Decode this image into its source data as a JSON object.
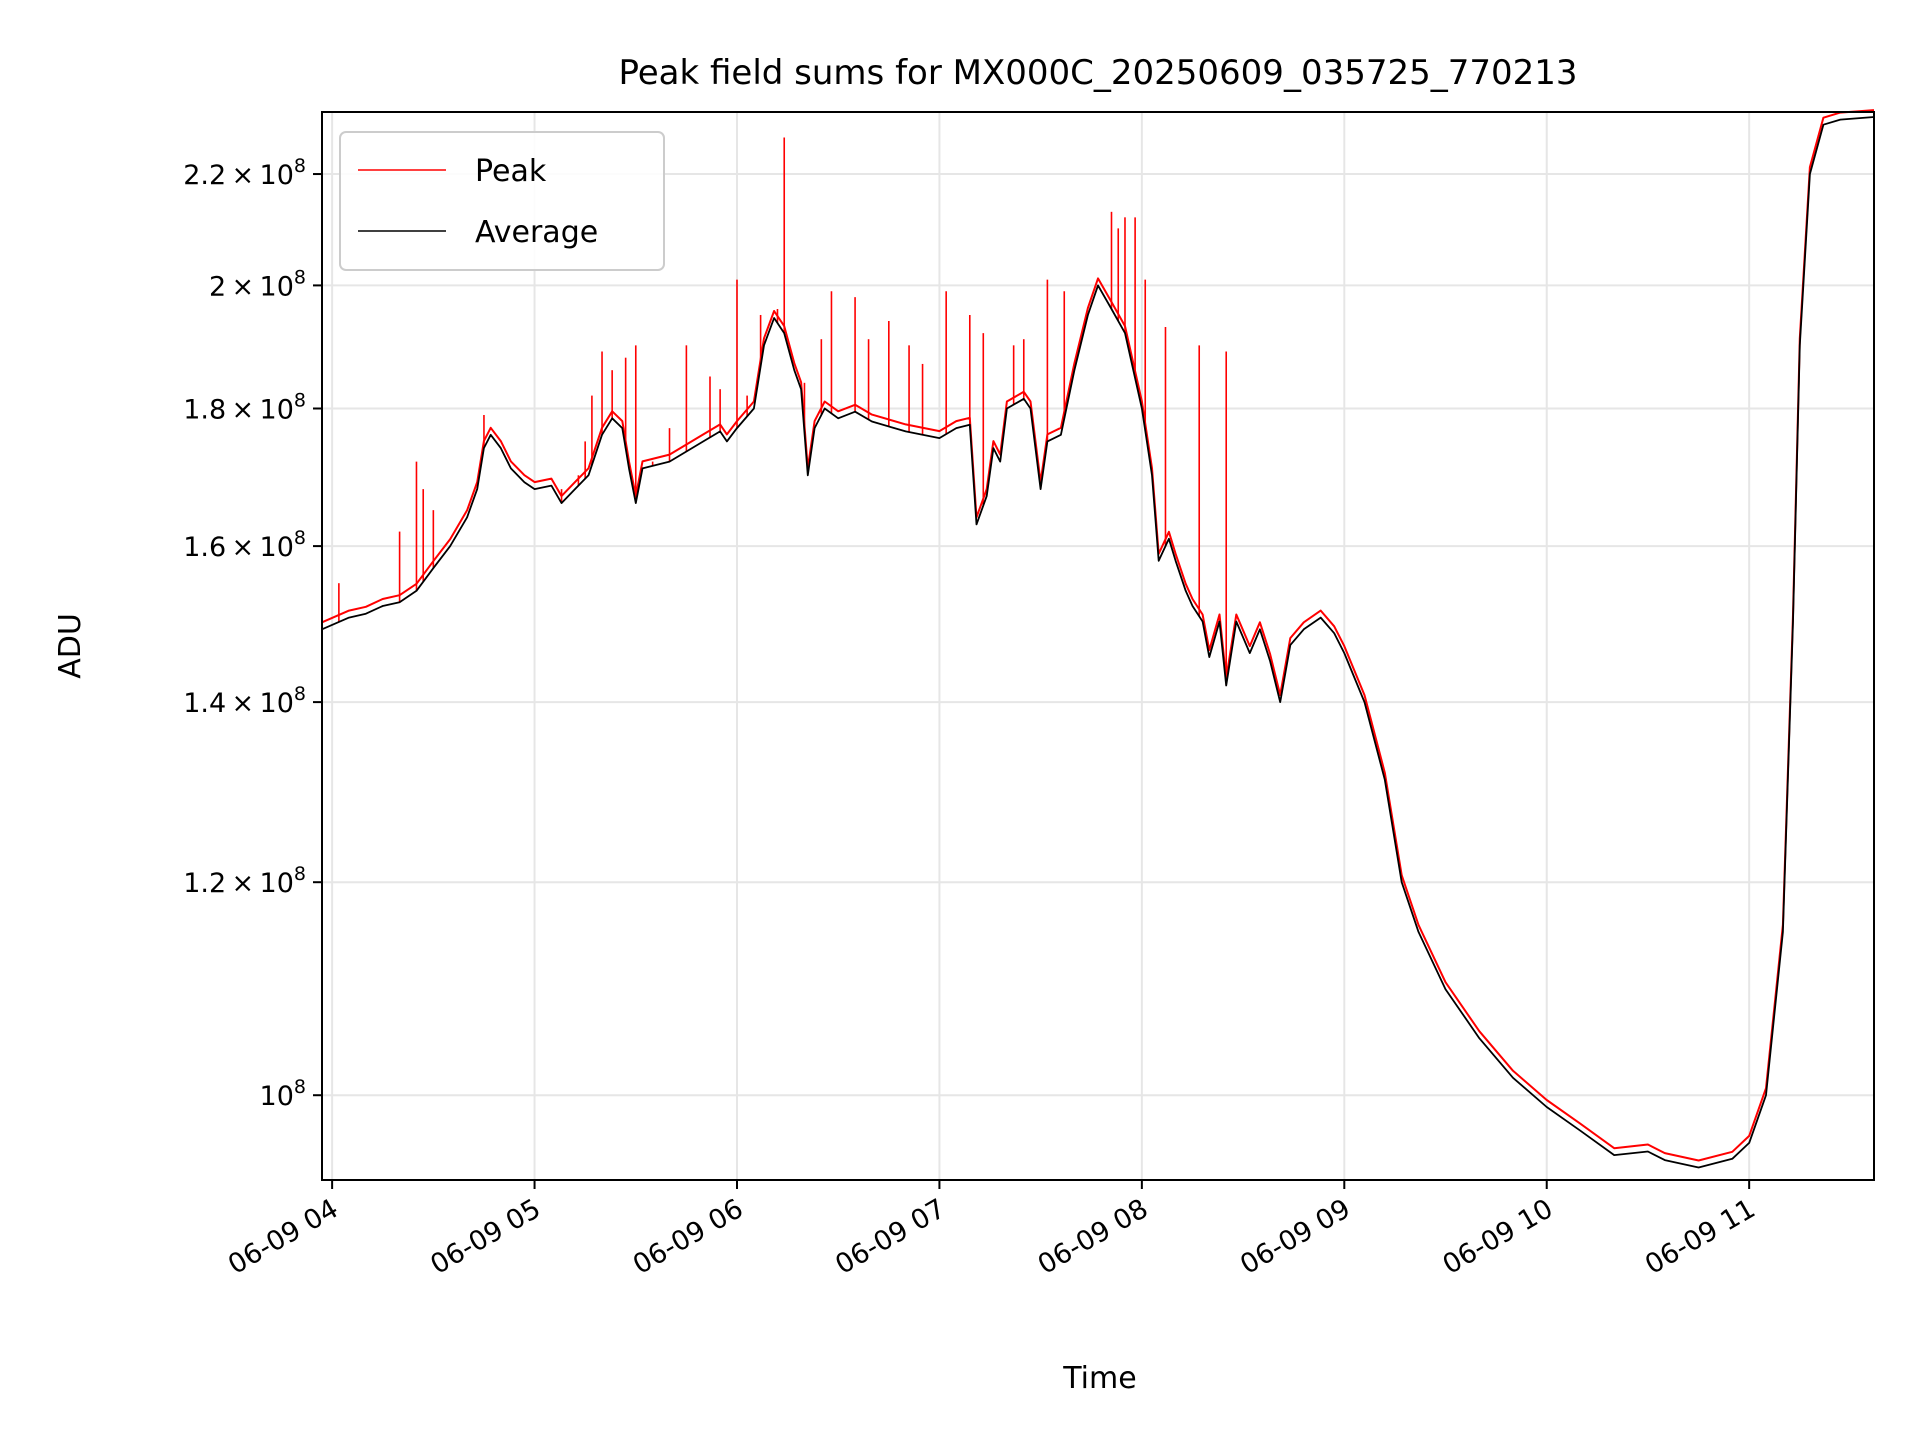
{
  "chart_data": {
    "type": "line",
    "title": "Peak field sums for MX000C_20250609_035725_770213",
    "xlabel": "Time",
    "ylabel": "ADU",
    "x_scale": "time",
    "y_scale": "log",
    "xlim": [
      "2025-06-09 03:57",
      "2025-06-09 11:37"
    ],
    "ylim": [
      93000000,
      232000000
    ],
    "grid": true,
    "legend_position": "upper-left",
    "x_ticks": [
      {
        "value": "2025-06-09 04:00",
        "label": "06-09 04"
      },
      {
        "value": "2025-06-09 05:00",
        "label": "06-09 05"
      },
      {
        "value": "2025-06-09 06:00",
        "label": "06-09 06"
      },
      {
        "value": "2025-06-09 07:00",
        "label": "06-09 07"
      },
      {
        "value": "2025-06-09 08:00",
        "label": "06-09 08"
      },
      {
        "value": "2025-06-09 09:00",
        "label": "06-09 09"
      },
      {
        "value": "2025-06-09 10:00",
        "label": "06-09 10"
      },
      {
        "value": "2025-06-09 11:00",
        "label": "06-09 11"
      }
    ],
    "y_ticks": [
      {
        "value": 100000000,
        "mantissa": "",
        "exponent": "8"
      },
      {
        "value": 120000000,
        "mantissa": "1.2",
        "exponent": "8"
      },
      {
        "value": 140000000,
        "mantissa": "1.4",
        "exponent": "8"
      },
      {
        "value": 160000000,
        "mantissa": "1.6",
        "exponent": "8"
      },
      {
        "value": 180000000,
        "mantissa": "1.8",
        "exponent": "8"
      },
      {
        "value": 200000000,
        "mantissa": "2",
        "exponent": "8"
      },
      {
        "value": 220000000,
        "mantissa": "2.2",
        "exponent": "8"
      }
    ],
    "series": [
      {
        "name": "Peak",
        "color": "#ff0000",
        "spikes": [
          [
            "2025-06-09 04:02",
            155000000
          ],
          [
            "2025-06-09 04:20",
            162000000
          ],
          [
            "2025-06-09 04:25",
            172000000
          ],
          [
            "2025-06-09 04:27",
            168000000
          ],
          [
            "2025-06-09 04:30",
            165000000
          ],
          [
            "2025-06-09 04:45",
            179000000
          ],
          [
            "2025-06-09 05:08",
            168000000
          ],
          [
            "2025-06-09 05:13",
            170000000
          ],
          [
            "2025-06-09 05:15",
            175000000
          ],
          [
            "2025-06-09 05:17",
            182000000
          ],
          [
            "2025-06-09 05:20",
            189000000
          ],
          [
            "2025-06-09 05:23",
            186000000
          ],
          [
            "2025-06-09 05:27",
            188000000
          ],
          [
            "2025-06-09 05:30",
            190000000
          ],
          [
            "2025-06-09 05:35",
            172000000
          ],
          [
            "2025-06-09 05:40",
            177000000
          ],
          [
            "2025-06-09 05:45",
            190000000
          ],
          [
            "2025-06-09 05:52",
            185000000
          ],
          [
            "2025-06-09 05:55",
            183000000
          ],
          [
            "2025-06-09 06:00",
            201000000
          ],
          [
            "2025-06-09 06:03",
            182000000
          ],
          [
            "2025-06-09 06:07",
            195000000
          ],
          [
            "2025-06-09 06:12",
            196000000
          ],
          [
            "2025-06-09 06:14",
            227000000
          ],
          [
            "2025-06-09 06:20",
            184000000
          ],
          [
            "2025-06-09 06:25",
            191000000
          ],
          [
            "2025-06-09 06:28",
            199000000
          ],
          [
            "2025-06-09 06:35",
            198000000
          ],
          [
            "2025-06-09 06:39",
            191000000
          ],
          [
            "2025-06-09 06:45",
            194000000
          ],
          [
            "2025-06-09 06:51",
            190000000
          ],
          [
            "2025-06-09 06:55",
            187000000
          ],
          [
            "2025-06-09 07:02",
            199000000
          ],
          [
            "2025-06-09 07:09",
            195000000
          ],
          [
            "2025-06-09 07:13",
            192000000
          ],
          [
            "2025-06-09 07:22",
            190000000
          ],
          [
            "2025-06-09 07:25",
            191000000
          ],
          [
            "2025-06-09 07:32",
            201000000
          ],
          [
            "2025-06-09 07:37",
            199000000
          ],
          [
            "2025-06-09 07:43",
            193000000
          ],
          [
            "2025-06-09 07:48",
            199000000
          ],
          [
            "2025-06-09 07:51",
            213000000
          ],
          [
            "2025-06-09 07:53",
            210000000
          ],
          [
            "2025-06-09 07:55",
            212000000
          ],
          [
            "2025-06-09 07:58",
            212000000
          ],
          [
            "2025-06-09 08:01",
            201000000
          ],
          [
            "2025-06-09 08:07",
            193000000
          ],
          [
            "2025-06-09 08:17",
            190000000
          ],
          [
            "2025-06-09 08:25",
            189000000
          ]
        ]
      },
      {
        "name": "Average",
        "color": "#000000",
        "points": [
          [
            "2025-06-09 03:57",
            149000000
          ],
          [
            "2025-06-09 04:05",
            150500000
          ],
          [
            "2025-06-09 04:10",
            151000000
          ],
          [
            "2025-06-09 04:15",
            152000000
          ],
          [
            "2025-06-09 04:20",
            152500000
          ],
          [
            "2025-06-09 04:25",
            154000000
          ],
          [
            "2025-06-09 04:30",
            157000000
          ],
          [
            "2025-06-09 04:35",
            160000000
          ],
          [
            "2025-06-09 04:40",
            164000000
          ],
          [
            "2025-06-09 04:43",
            168000000
          ],
          [
            "2025-06-09 04:45",
            174000000
          ],
          [
            "2025-06-09 04:47",
            176000000
          ],
          [
            "2025-06-09 04:50",
            174000000
          ],
          [
            "2025-06-09 04:53",
            171000000
          ],
          [
            "2025-06-09 04:57",
            169000000
          ],
          [
            "2025-06-09 05:00",
            168000000
          ],
          [
            "2025-06-09 05:05",
            168500000
          ],
          [
            "2025-06-09 05:08",
            166000000
          ],
          [
            "2025-06-09 05:12",
            168000000
          ],
          [
            "2025-06-09 05:16",
            170000000
          ],
          [
            "2025-06-09 05:20",
            176000000
          ],
          [
            "2025-06-09 05:23",
            178500000
          ],
          [
            "2025-06-09 05:26",
            177000000
          ],
          [
            "2025-06-09 05:28",
            171000000
          ],
          [
            "2025-06-09 05:30",
            166000000
          ],
          [
            "2025-06-09 05:32",
            171000000
          ],
          [
            "2025-06-09 05:40",
            172000000
          ],
          [
            "2025-06-09 05:50",
            175000000
          ],
          [
            "2025-06-09 05:55",
            176500000
          ],
          [
            "2025-06-09 05:57",
            175000000
          ],
          [
            "2025-06-09 06:00",
            177000000
          ],
          [
            "2025-06-09 06:05",
            180000000
          ],
          [
            "2025-06-09 06:08",
            190000000
          ],
          [
            "2025-06-09 06:11",
            194500000
          ],
          [
            "2025-06-09 06:14",
            192000000
          ],
          [
            "2025-06-09 06:17",
            186000000
          ],
          [
            "2025-06-09 06:19",
            183000000
          ],
          [
            "2025-06-09 06:21",
            170000000
          ],
          [
            "2025-06-09 06:23",
            177000000
          ],
          [
            "2025-06-09 06:26",
            180000000
          ],
          [
            "2025-06-09 06:30",
            178500000
          ],
          [
            "2025-06-09 06:35",
            179500000
          ],
          [
            "2025-06-09 06:40",
            178000000
          ],
          [
            "2025-06-09 06:50",
            176500000
          ],
          [
            "2025-06-09 07:00",
            175500000
          ],
          [
            "2025-06-09 07:05",
            177000000
          ],
          [
            "2025-06-09 07:09",
            177500000
          ],
          [
            "2025-06-09 07:11",
            163000000
          ],
          [
            "2025-06-09 07:14",
            167000000
          ],
          [
            "2025-06-09 07:16",
            174000000
          ],
          [
            "2025-06-09 07:18",
            172000000
          ],
          [
            "2025-06-09 07:20",
            180000000
          ],
          [
            "2025-06-09 07:25",
            181500000
          ],
          [
            "2025-06-09 07:27",
            180000000
          ],
          [
            "2025-06-09 07:30",
            168000000
          ],
          [
            "2025-06-09 07:32",
            175000000
          ],
          [
            "2025-06-09 07:36",
            176000000
          ],
          [
            "2025-06-09 07:40",
            186000000
          ],
          [
            "2025-06-09 07:44",
            195000000
          ],
          [
            "2025-06-09 07:47",
            200000000
          ],
          [
            "2025-06-09 07:51",
            196000000
          ],
          [
            "2025-06-09 07:55",
            192000000
          ],
          [
            "2025-06-09 08:00",
            180000000
          ],
          [
            "2025-06-09 08:03",
            170000000
          ],
          [
            "2025-06-09 08:05",
            158000000
          ],
          [
            "2025-06-09 08:08",
            161000000
          ],
          [
            "2025-06-09 08:10",
            158000000
          ],
          [
            "2025-06-09 08:13",
            154000000
          ],
          [
            "2025-06-09 08:15",
            152000000
          ],
          [
            "2025-06-09 08:18",
            150000000
          ],
          [
            "2025-06-09 08:20",
            145500000
          ],
          [
            "2025-06-09 08:23",
            150000000
          ],
          [
            "2025-06-09 08:25",
            142000000
          ],
          [
            "2025-06-09 08:28",
            150000000
          ],
          [
            "2025-06-09 08:32",
            146000000
          ],
          [
            "2025-06-09 08:35",
            149000000
          ],
          [
            "2025-06-09 08:38",
            145000000
          ],
          [
            "2025-06-09 08:41",
            140000000
          ],
          [
            "2025-06-09 08:44",
            147000000
          ],
          [
            "2025-06-09 08:48",
            149000000
          ],
          [
            "2025-06-09 08:53",
            150500000
          ],
          [
            "2025-06-09 08:57",
            148500000
          ],
          [
            "2025-06-09 09:00",
            146000000
          ],
          [
            "2025-06-09 09:06",
            140000000
          ],
          [
            "2025-06-09 09:12",
            131000000
          ],
          [
            "2025-06-09 09:17",
            120000000
          ],
          [
            "2025-06-09 09:22",
            115000000
          ],
          [
            "2025-06-09 09:30",
            109500000
          ],
          [
            "2025-06-09 09:40",
            105000000
          ],
          [
            "2025-06-09 09:50",
            101500000
          ],
          [
            "2025-06-09 10:00",
            99000000
          ],
          [
            "2025-06-09 10:10",
            97000000
          ],
          [
            "2025-06-09 10:20",
            95000000
          ],
          [
            "2025-06-09 10:30",
            95300000
          ],
          [
            "2025-06-09 10:35",
            94600000
          ],
          [
            "2025-06-09 10:45",
            94000000
          ],
          [
            "2025-06-09 10:55",
            94700000
          ],
          [
            "2025-06-09 11:00",
            96000000
          ],
          [
            "2025-06-09 11:05",
            100000000
          ],
          [
            "2025-06-09 11:10",
            115000000
          ],
          [
            "2025-06-09 11:13",
            150000000
          ],
          [
            "2025-06-09 11:15",
            190000000
          ],
          [
            "2025-06-09 11:18",
            220000000
          ],
          [
            "2025-06-09 11:22",
            229500000
          ],
          [
            "2025-06-09 11:27",
            230500000
          ],
          [
            "2025-06-09 11:37",
            231000000
          ]
        ]
      }
    ]
  }
}
